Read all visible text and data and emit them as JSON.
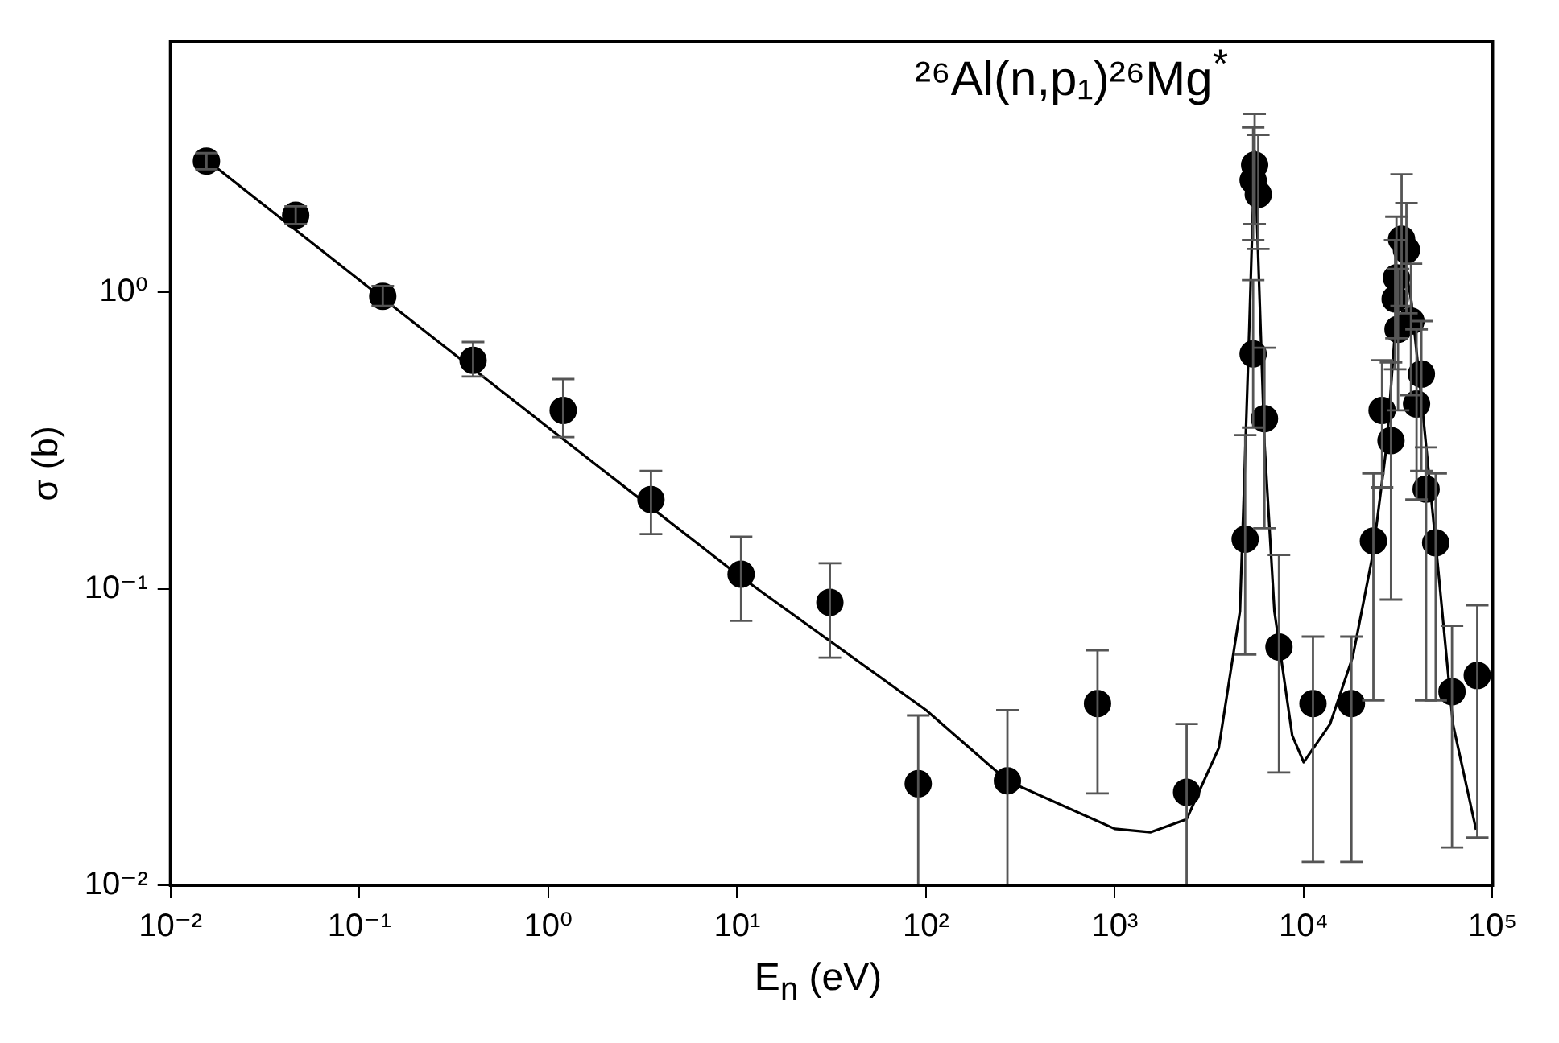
{
  "chart_data": {
    "type": "scatter",
    "title": "²⁶Al(n,p₁)²⁶Mg$^{*}$",
    "xlabel": "E$_{n}$ (eV)",
    "ylabel": "σ (b)",
    "log": "xy",
    "grid": false,
    "legend": false,
    "marker": "circle",
    "xlim": [
      0.01,
      100000
    ],
    "ylim": [
      0.01,
      7
    ],
    "xticks": [
      {
        "value": 0.01,
        "label": "10⁻²"
      },
      {
        "value": 0.1,
        "label": "10⁻¹"
      },
      {
        "value": 1,
        "label": "10⁰"
      },
      {
        "value": 10,
        "label": "10¹"
      },
      {
        "value": 100,
        "label": "10²"
      },
      {
        "value": 1000,
        "label": "10³"
      },
      {
        "value": 10000,
        "label": "10⁴"
      },
      {
        "value": 100000,
        "label": "10⁵"
      }
    ],
    "yticks": [
      {
        "value": 0.01,
        "label": "10⁻²"
      },
      {
        "value": 0.1,
        "label": "10⁻¹"
      },
      {
        "value": 1,
        "label": "10⁰"
      }
    ],
    "series": [
      {
        "color": "#000000",
        "x": [
          0.0155,
          0.046,
          0.133,
          0.4,
          1.2,
          3.5,
          10.5,
          31,
          91,
          270,
          810,
          2400,
          4900,
          5400,
          5400,
          5500,
          5750,
          6200,
          7400,
          11200,
          17900,
          23400,
          26000,
          29000,
          30500,
          31000,
          31600,
          33000,
          35000,
          37000,
          39600,
          42000,
          44500,
          50000,
          61000,
          83000
        ],
        "values": [
          2.77,
          1.82,
          0.97,
          0.59,
          0.4,
          0.2,
          0.112,
          0.09,
          0.022,
          0.0225,
          0.041,
          0.0206,
          0.147,
          0.62,
          2.39,
          2.69,
          2.14,
          0.375,
          0.0636,
          0.041,
          0.041,
          0.145,
          0.4,
          0.316,
          0.95,
          1.12,
          0.75,
          1.51,
          1.39,
          0.8,
          0.42,
          0.53,
          0.217,
          0.143,
          0.045,
          0.051
        ],
        "errors": [
          [
            2.6,
            2.95
          ],
          [
            1.7,
            1.95
          ],
          [
            0.9,
            1.05
          ],
          [
            0.52,
            0.68
          ],
          [
            0.325,
            0.51
          ],
          [
            0.153,
            0.25
          ],
          [
            0.078,
            0.15
          ],
          [
            0.0586,
            0.122
          ],
          [
            0.01,
            0.0374
          ],
          [
            0.01,
            0.039
          ],
          [
            0.0204,
            0.062
          ],
          [
            0.01,
            0.035
          ],
          [
            0.06,
            0.33
          ],
          [
            0.35,
            1.1
          ],
          [
            1.5,
            3.6
          ],
          [
            1.7,
            4.0
          ],
          [
            1.4,
            3.4
          ],
          [
            0.16,
            0.65
          ],
          [
            0.024,
            0.13
          ],
          [
            0.012,
            0.069
          ],
          [
            0.012,
            0.069
          ],
          [
            0.042,
            0.245
          ],
          [
            0.22,
            0.59
          ],
          [
            0.092,
            0.58
          ],
          [
            0.55,
            1.5
          ],
          [
            0.7,
            1.8
          ],
          [
            0.4,
            1.2
          ],
          [
            0.9,
            2.5
          ],
          [
            0.85,
            2.0
          ],
          [
            0.45,
            1.25
          ],
          [
            0.2,
            0.75
          ],
          [
            0.25,
            0.8
          ],
          [
            0.042,
            0.3
          ],
          [
            0.042,
            0.245
          ],
          [
            0.0134,
            0.075
          ],
          [
            0.0145,
            0.088
          ]
        ]
      },
      {
        "type": "line",
        "color": "#000000",
        "marker": "none",
        "line_style": "solid",
        "x": [
          0.0155,
          0.1,
          1,
          10,
          100,
          270,
          1000,
          1550,
          2400,
          3550,
          4600,
          5150,
          5500,
          6200,
          7000,
          8700,
          10000,
          13800,
          18200,
          23200,
          27600,
          30500,
          33800,
          37200,
          42800,
          50700,
          61700,
          81800
        ],
        "values": [
          2.8,
          1.1,
          0.35,
          0.112,
          0.039,
          0.0225,
          0.0155,
          0.0151,
          0.0167,
          0.029,
          0.084,
          0.75,
          3.0,
          0.31,
          0.084,
          0.032,
          0.026,
          0.035,
          0.059,
          0.13,
          0.31,
          0.75,
          1.33,
          0.93,
          0.39,
          0.13,
          0.035,
          0.0154
        ]
      }
    ]
  }
}
